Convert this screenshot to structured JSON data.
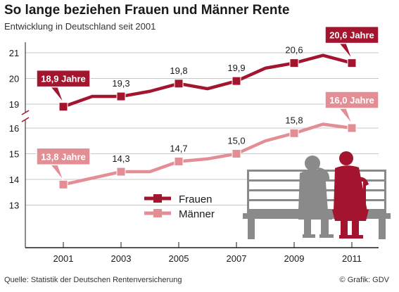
{
  "title": "So lange beziehen Frauen und Männer Rente",
  "subtitle": "Entwicklung in Deutschland seit 2001",
  "source": "Quelle: Statistik der Deutschen Rentenversicherung",
  "credit": "© Grafik: GDV",
  "colors": {
    "frauen": "#a3142e",
    "maenner": "#e38e94",
    "axis": "#1a1a1a",
    "grid": "#c8c8c8",
    "illustration_gray": "#8a8a8a",
    "illustration_red": "#a3142e"
  },
  "icons": [
    "bench-illustration-icon",
    "elderly-couple-icon"
  ],
  "chart_data": {
    "type": "line",
    "title": "So lange beziehen Frauen und Männer Rente",
    "subtitle": "Entwicklung in Deutschland seit 2001",
    "x": [
      2001,
      2002,
      2003,
      2004,
      2005,
      2006,
      2007,
      2008,
      2009,
      2010,
      2011
    ],
    "xticks": [
      "2001",
      "2003",
      "2005",
      "2007",
      "2009",
      "2011"
    ],
    "yticks_upper": [
      "19",
      "20",
      "21"
    ],
    "yticks_lower": [
      "13",
      "14",
      "15",
      "16"
    ],
    "axis_break": true,
    "legend_position": "bottom-center",
    "series": [
      {
        "name": "Frauen",
        "values": [
          18.9,
          19.3,
          19.3,
          19.5,
          19.8,
          19.6,
          19.9,
          20.4,
          20.6,
          20.9,
          20.6
        ],
        "marker_years": [
          2001,
          2003,
          2005,
          2007,
          2009,
          2011
        ]
      },
      {
        "name": "Männer",
        "values": [
          13.8,
          14.05,
          14.3,
          14.3,
          14.7,
          14.8,
          15.0,
          15.5,
          15.8,
          16.15,
          16.0
        ],
        "marker_years": [
          2001,
          2003,
          2005,
          2007,
          2009,
          2011
        ]
      }
    ],
    "data_labels": [
      {
        "series": 0,
        "year": 2001,
        "text": "18,9 Jahre",
        "boxed": true
      },
      {
        "series": 0,
        "year": 2003,
        "text": "19,3",
        "boxed": false
      },
      {
        "series": 0,
        "year": 2005,
        "text": "19,8",
        "boxed": false
      },
      {
        "series": 0,
        "year": 2007,
        "text": "19,9",
        "boxed": false
      },
      {
        "series": 0,
        "year": 2009,
        "text": "20,6",
        "boxed": false
      },
      {
        "series": 0,
        "year": 2011,
        "text": "20,6 Jahre",
        "boxed": true
      },
      {
        "series": 1,
        "year": 2001,
        "text": "13,8 Jahre",
        "boxed": true
      },
      {
        "series": 1,
        "year": 2003,
        "text": "14,3",
        "boxed": false
      },
      {
        "series": 1,
        "year": 2005,
        "text": "14,7",
        "boxed": false
      },
      {
        "series": 1,
        "year": 2007,
        "text": "15,0",
        "boxed": false
      },
      {
        "series": 1,
        "year": 2009,
        "text": "15,8",
        "boxed": false
      },
      {
        "series": 1,
        "year": 2011,
        "text": "16,0 Jahre",
        "boxed": true
      }
    ]
  }
}
